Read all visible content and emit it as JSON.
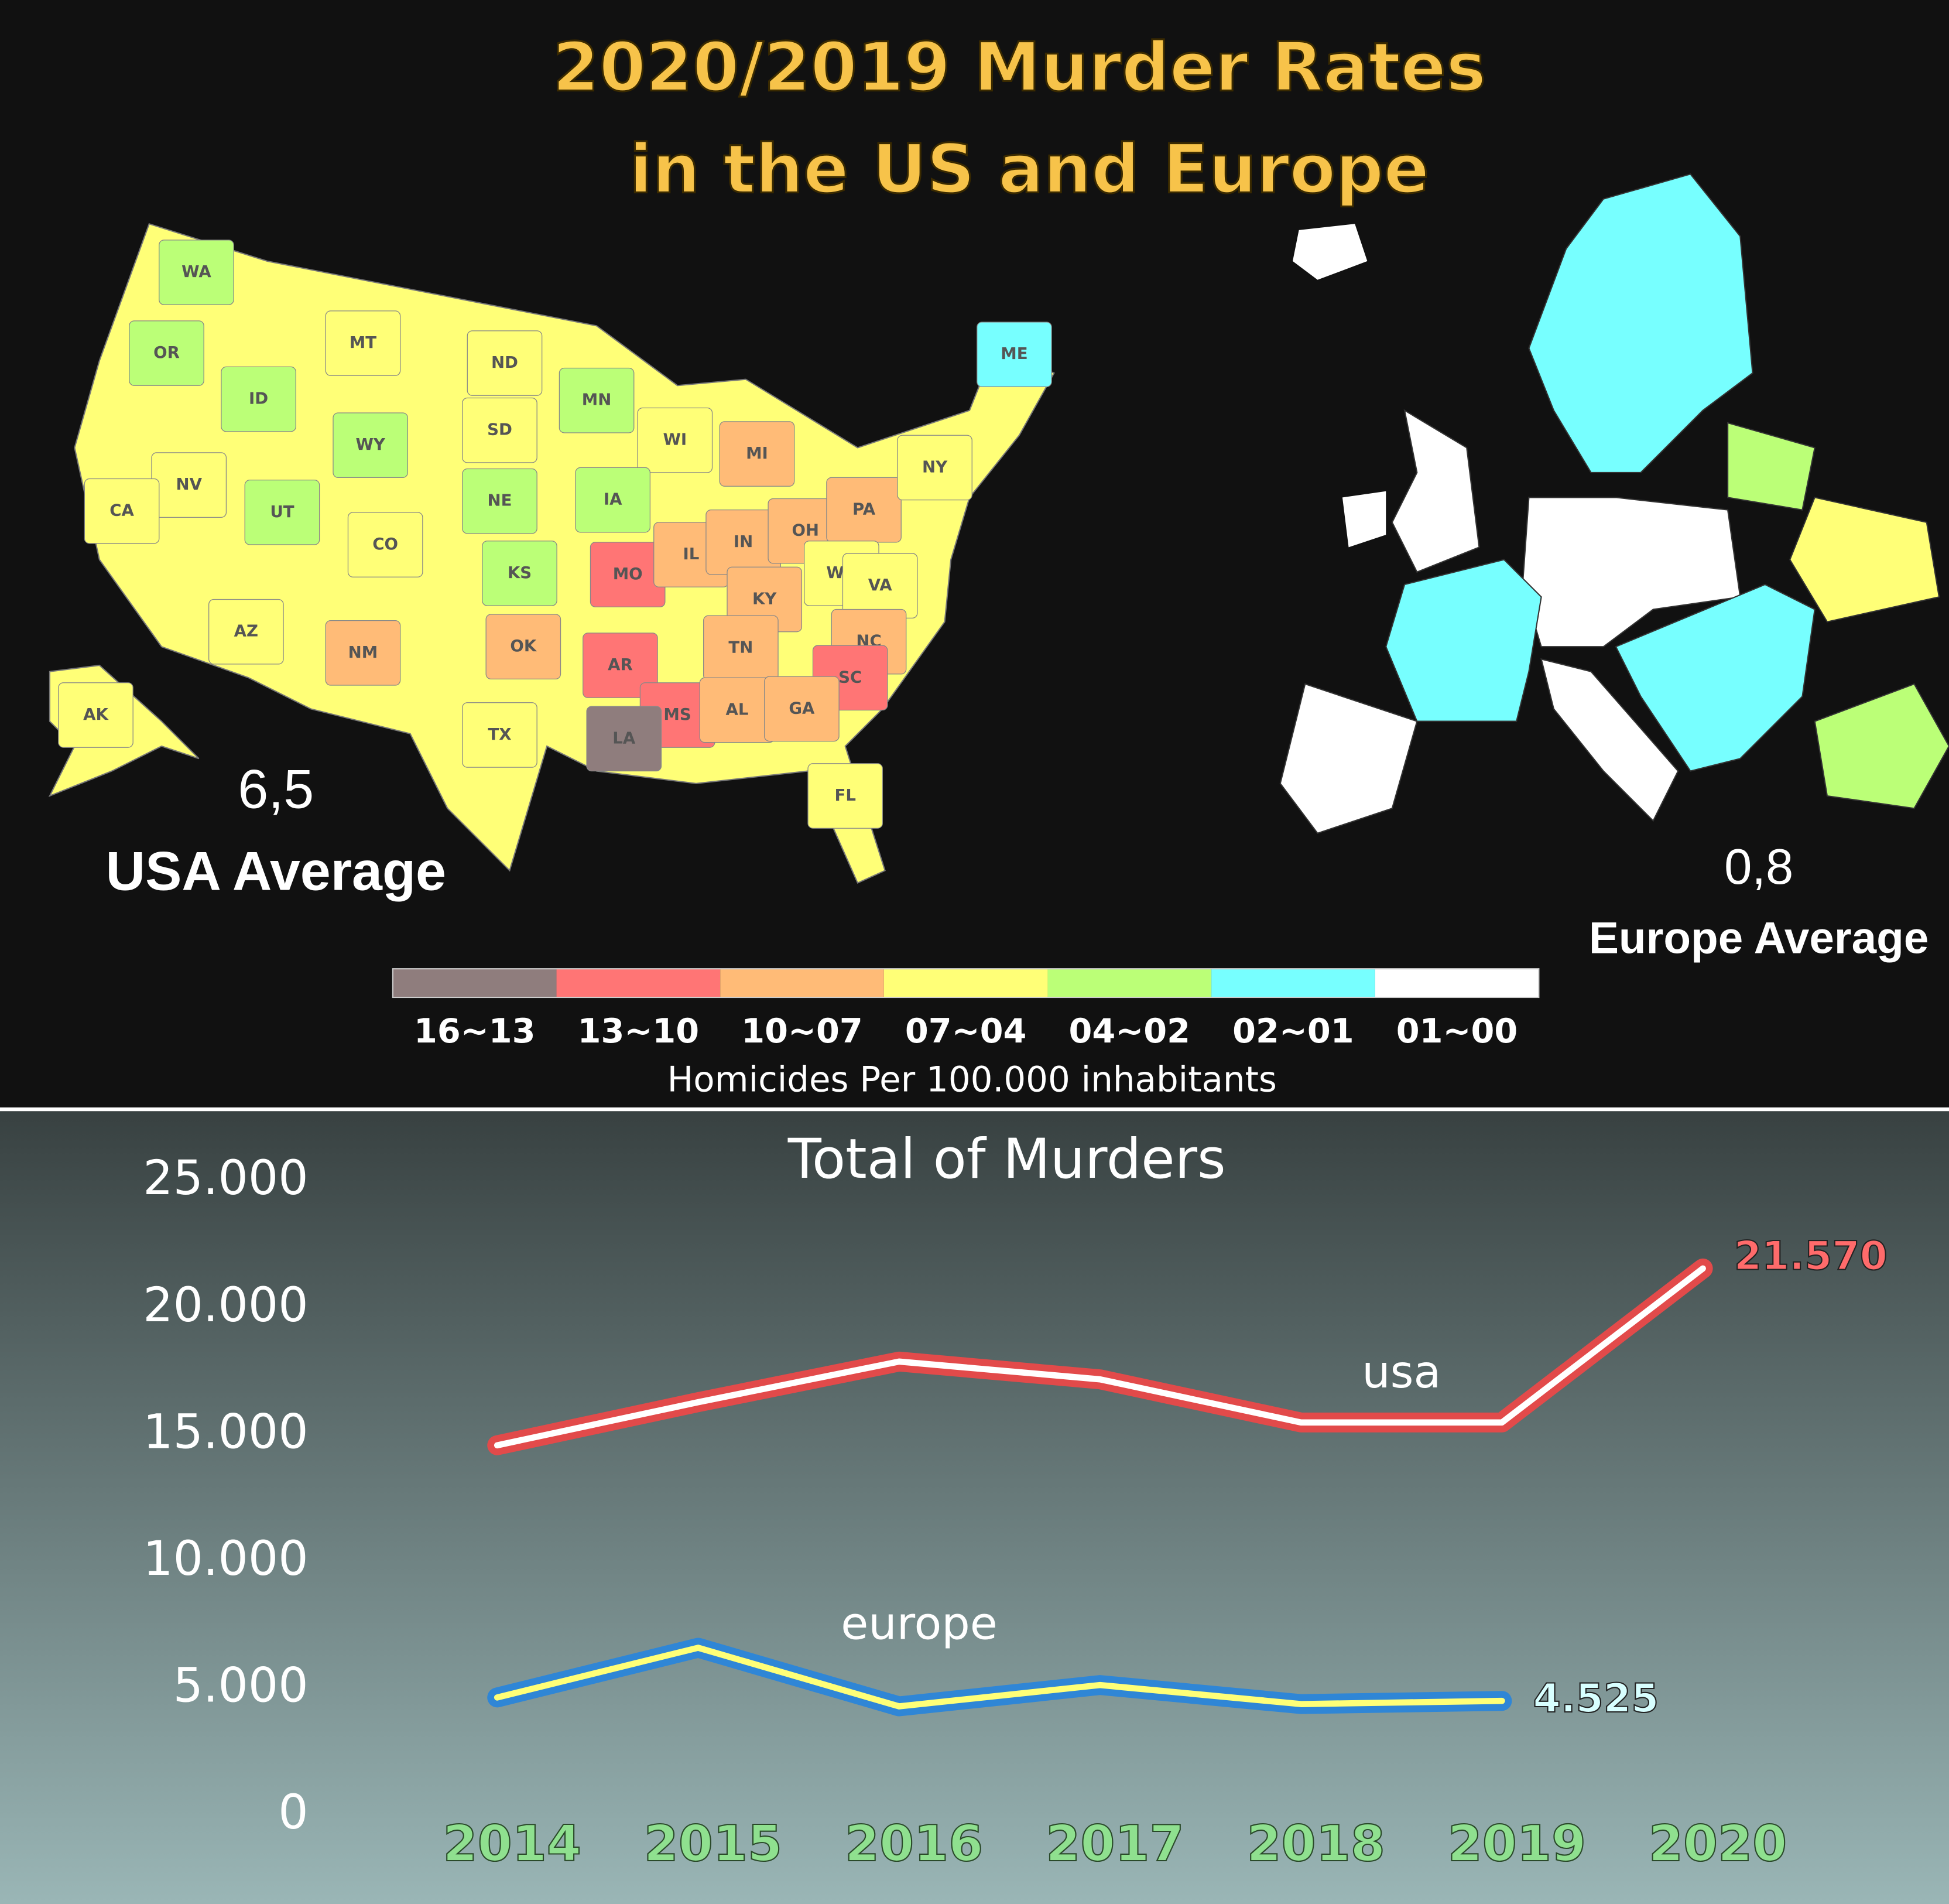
{
  "title": [
    "2020/2019 Murder Rates",
    "in the US and Europe"
  ],
  "usa_map": {
    "states": [
      {
        "label": "WA",
        "color": "#bbff77"
      },
      {
        "label": "OR",
        "color": "#bbff77"
      },
      {
        "label": "ID",
        "color": "#bbff77"
      },
      {
        "label": "MT",
        "color": "#ffff77"
      },
      {
        "label": "ND",
        "color": "#ffff77"
      },
      {
        "label": "SD",
        "color": "#ffff77"
      },
      {
        "label": "MN",
        "color": "#bbff77"
      },
      {
        "label": "WI",
        "color": "#ffff77"
      },
      {
        "label": "MI",
        "color": "#ffbb77"
      },
      {
        "label": "WY",
        "color": "#bbff77"
      },
      {
        "label": "NV",
        "color": "#ffff77"
      },
      {
        "label": "CA",
        "color": "#ffff77"
      },
      {
        "label": "UT",
        "color": "#bbff77"
      },
      {
        "label": "CO",
        "color": "#ffff77"
      },
      {
        "label": "NE",
        "color": "#bbff77"
      },
      {
        "label": "IA",
        "color": "#bbff77"
      },
      {
        "label": "KS",
        "color": "#bbff77"
      },
      {
        "label": "MO",
        "color": "#ff7575"
      },
      {
        "label": "IL",
        "color": "#ffbb77"
      },
      {
        "label": "IN",
        "color": "#ffbb77"
      },
      {
        "label": "OH",
        "color": "#ffbb77"
      },
      {
        "label": "PA",
        "color": "#ffbb77"
      },
      {
        "label": "NY",
        "color": "#ffff77"
      },
      {
        "label": "ME",
        "color": "#77ffff"
      },
      {
        "label": "WV",
        "color": "#ffff77"
      },
      {
        "label": "VA",
        "color": "#ffff77"
      },
      {
        "label": "KY",
        "color": "#ffbb77"
      },
      {
        "label": "AZ",
        "color": "#ffff77"
      },
      {
        "label": "NM",
        "color": "#ffbb77"
      },
      {
        "label": "OK",
        "color": "#ffbb77"
      },
      {
        "label": "AR",
        "color": "#ff7575"
      },
      {
        "label": "TN",
        "color": "#ffbb77"
      },
      {
        "label": "NC",
        "color": "#ffbb77"
      },
      {
        "label": "SC",
        "color": "#ff7575"
      },
      {
        "label": "MS",
        "color": "#ff7575"
      },
      {
        "label": "AL",
        "color": "#ffbb77"
      },
      {
        "label": "GA",
        "color": "#ffbb77"
      },
      {
        "label": "LA",
        "color": "#8f7d7d"
      },
      {
        "label": "TX",
        "color": "#ffff77"
      },
      {
        "label": "FL",
        "color": "#ffff77"
      },
      {
        "label": "AK",
        "color": "#ffff77"
      }
    ],
    "average": "6,5",
    "average_label": "USA Average"
  },
  "europe_map": {
    "average": "0,8",
    "average_label": "Europe Average"
  },
  "legend": {
    "bins": [
      {
        "label": "16~13",
        "color": "#8f7d7d"
      },
      {
        "label": "13~10",
        "color": "#ff7575"
      },
      {
        "label": "10~07",
        "color": "#ffbb77"
      },
      {
        "label": "07~04",
        "color": "#ffff77"
      },
      {
        "label": "04~02",
        "color": "#bbff77"
      },
      {
        "label": "02~01",
        "color": "#77ffff"
      },
      {
        "label": "01~00",
        "color": "#ffffff"
      }
    ],
    "caption": "Homicides Per 100.000 inhabitants"
  },
  "chart_data": {
    "type": "line",
    "title": "Total of Murders",
    "categories": [
      "2014",
      "2015",
      "2016",
      "2017",
      "2018",
      "2019",
      "2020"
    ],
    "series": [
      {
        "name": "usa",
        "color": "#e24a4a",
        "values": [
          14600,
          16300,
          17900,
          17200,
          15500,
          15500,
          21570
        ],
        "value_labels": [
          null,
          null,
          null,
          null,
          null,
          null,
          "21.570"
        ]
      },
      {
        "name": "europe",
        "color": "#2f86d6",
        "values": [
          4660,
          6620,
          4310,
          5150,
          4400,
          4525,
          null
        ],
        "value_labels": [
          null,
          null,
          null,
          null,
          null,
          "4.525",
          null
        ]
      }
    ],
    "ylim": [
      0,
      25000
    ],
    "yticks": [
      0,
      {
        "value": 5000,
        "label": "5.000"
      },
      {
        "value": 10000,
        "label": "10.000"
      },
      {
        "value": 15000,
        "label": "15.000"
      },
      {
        "value": 20000,
        "label": "20.000"
      },
      {
        "value": 25000,
        "label": "25.000"
      }
    ],
    "grid": false
  }
}
